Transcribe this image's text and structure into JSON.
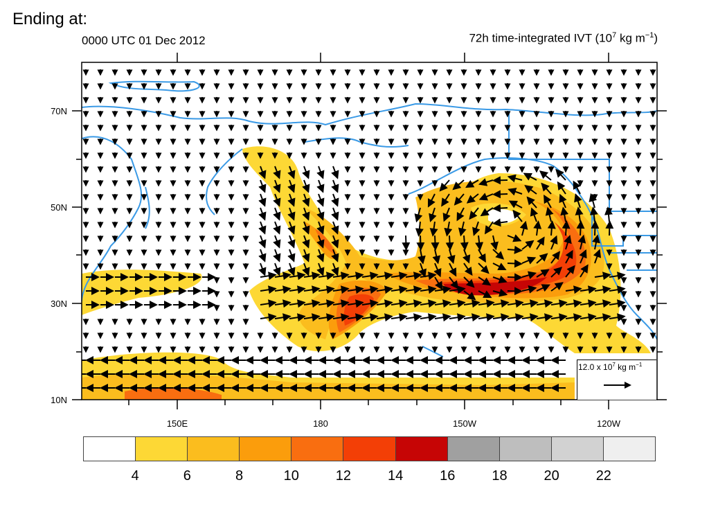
{
  "header": {
    "slide_title": "Ending at:",
    "valid_time": "0000 UTC 01 Dec 2012",
    "field_title_prefix": "72h time-integrated IVT (10",
    "field_title_exp": "7",
    "field_title_mid": " kg m",
    "field_title_exp2": "−1",
    "field_title_suffix": ")"
  },
  "map": {
    "lat_labels": [
      "70N",
      "50N",
      "30N",
      "10N"
    ],
    "lon_labels": [
      "150E",
      "180",
      "150W",
      "120W"
    ],
    "coastline_color": "#3a9ae6",
    "vector_color": "#000000"
  },
  "reference_vector": {
    "prefix": "12.0 x 10",
    "exp": "7",
    "mid": " kg m",
    "exp2": "−1"
  },
  "colorbar": {
    "colors": [
      "#ffffff",
      "#fdd835",
      "#fbbd1e",
      "#fb9d0c",
      "#f96e10",
      "#f33f06",
      "#c60505",
      "#a0a0a0",
      "#bebebe",
      "#d2d2d2",
      "#efefef"
    ],
    "tick_labels": [
      "4",
      "6",
      "8",
      "10",
      "12",
      "14",
      "16",
      "18",
      "20",
      "22"
    ]
  }
}
